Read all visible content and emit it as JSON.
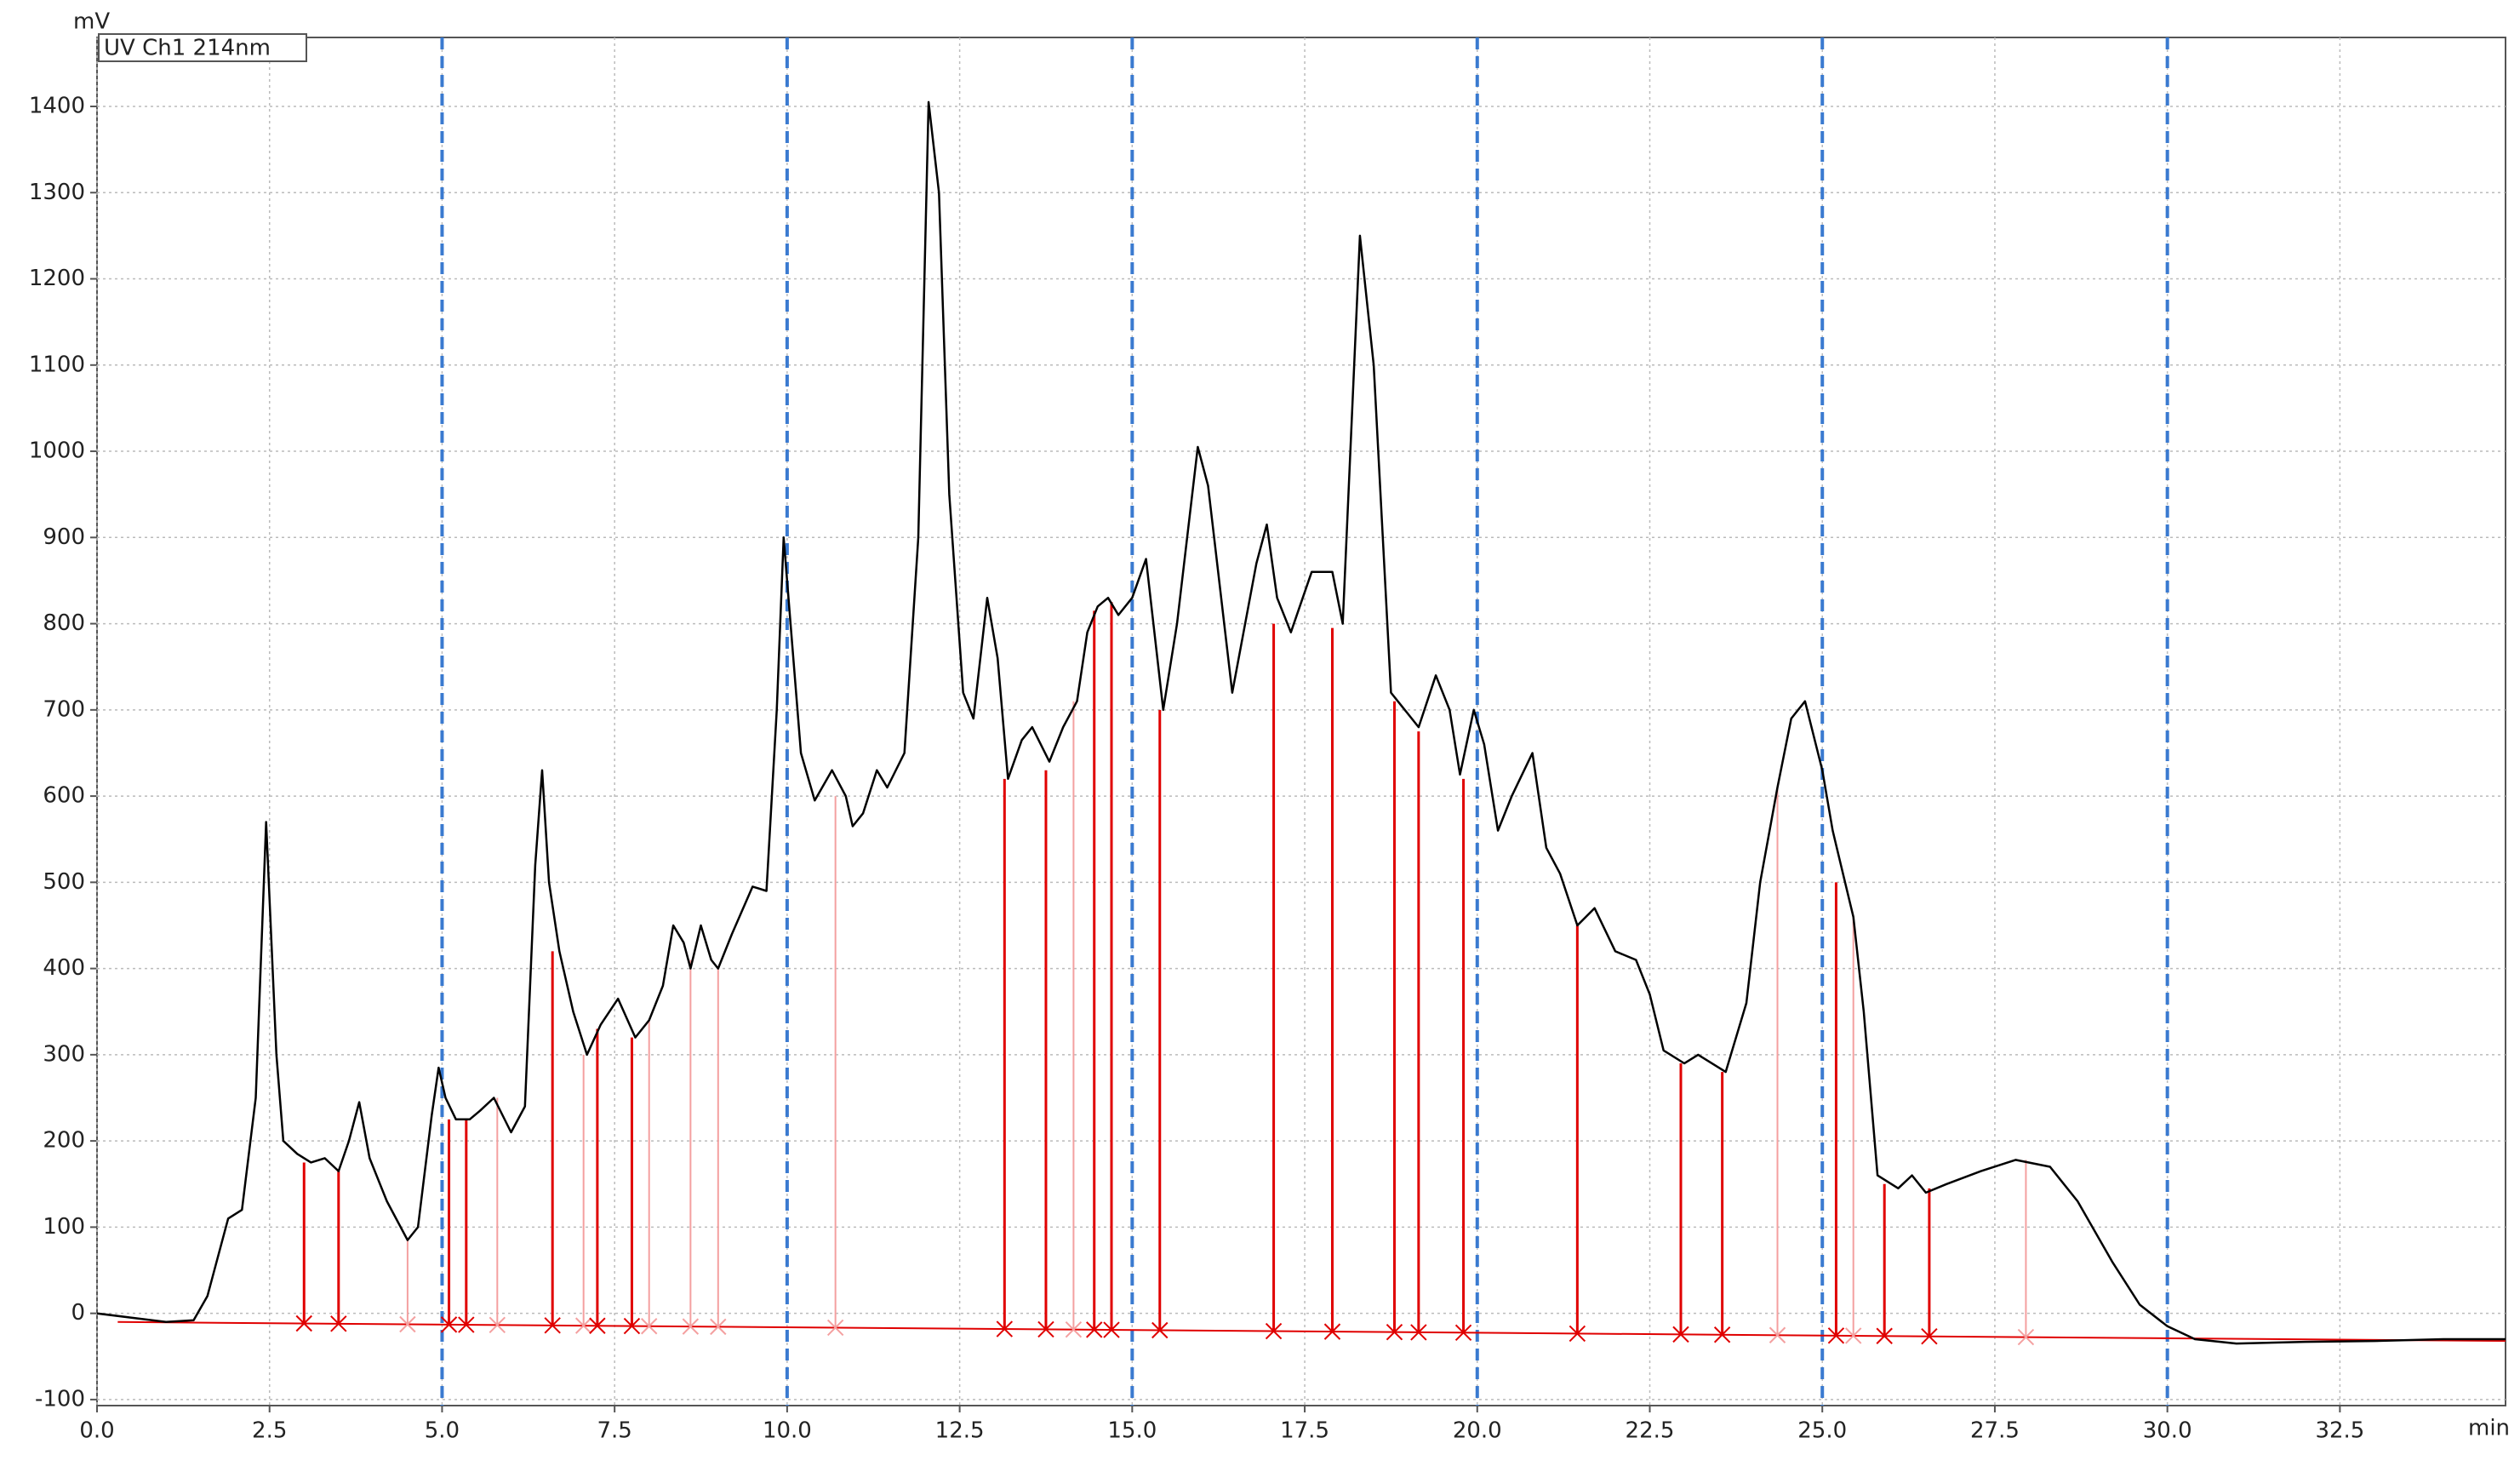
{
  "chart_data": {
    "type": "line",
    "ylabel": "mV",
    "xlabel": "min",
    "x": [
      0,
      0.5,
      1.0,
      1.4,
      1.6,
      1.9,
      2.1,
      2.3,
      2.45,
      2.6,
      2.7,
      2.9,
      3.1,
      3.3,
      3.5,
      3.65,
      3.8,
      3.95,
      4.2,
      4.5,
      4.65,
      4.85,
      4.95,
      5.05,
      5.2,
      5.4,
      5.55,
      5.75,
      6.0,
      6.2,
      6.35,
      6.45,
      6.55,
      6.7,
      6.9,
      7.1,
      7.3,
      7.55,
      7.8,
      8.0,
      8.2,
      8.35,
      8.5,
      8.6,
      8.75,
      8.9,
      9.0,
      9.2,
      9.5,
      9.7,
      9.85,
      9.95,
      10.05,
      10.2,
      10.4,
      10.65,
      10.85,
      10.95,
      11.1,
      11.3,
      11.45,
      11.7,
      11.9,
      12.05,
      12.2,
      12.35,
      12.55,
      12.7,
      12.9,
      13.05,
      13.2,
      13.4,
      13.55,
      13.8,
      14.0,
      14.2,
      14.35,
      14.5,
      14.65,
      14.8,
      15.0,
      15.2,
      15.45,
      15.65,
      15.95,
      16.1,
      16.45,
      16.8,
      16.95,
      17.1,
      17.3,
      17.6,
      17.9,
      18.05,
      18.3,
      18.5,
      18.75,
      18.95,
      19.15,
      19.4,
      19.6,
      19.75,
      19.95,
      20.1,
      20.3,
      20.5,
      20.8,
      21.0,
      21.2,
      21.45,
      21.7,
      22.0,
      22.3,
      22.5,
      22.7,
      23.0,
      23.2,
      23.6,
      23.9,
      24.1,
      24.35,
      24.55,
      24.75,
      25.0,
      25.15,
      25.3,
      25.45,
      25.6,
      25.8,
      26.1,
      26.3,
      26.5,
      26.8,
      27.3,
      27.8,
      28.3,
      28.7,
      29.2,
      29.6,
      30.0,
      30.4,
      31.0,
      32.0,
      33.0,
      34.0,
      34.9
    ],
    "series": [
      {
        "name": "UV Ch1 214nm",
        "color": "#000000",
        "values": [
          0,
          -5,
          -10,
          -8,
          20,
          110,
          120,
          250,
          570,
          300,
          200,
          185,
          175,
          180,
          165,
          200,
          245,
          180,
          130,
          85,
          100,
          230,
          285,
          250,
          225,
          225,
          235,
          250,
          210,
          240,
          520,
          630,
          500,
          420,
          350,
          300,
          335,
          365,
          320,
          340,
          380,
          450,
          430,
          400,
          450,
          410,
          400,
          440,
          495,
          490,
          700,
          900,
          800,
          650,
          595,
          630,
          600,
          565,
          580,
          630,
          610,
          650,
          900,
          1405,
          1300,
          950,
          720,
          690,
          830,
          760,
          620,
          665,
          680,
          640,
          680,
          710,
          790,
          820,
          830,
          810,
          830,
          875,
          700,
          800,
          1005,
          960,
          720,
          870,
          915,
          830,
          790,
          860,
          860,
          800,
          1250,
          1100,
          720,
          700,
          680,
          740,
          700,
          625,
          700,
          660,
          560,
          600,
          650,
          540,
          510,
          450,
          470,
          420,
          410,
          370,
          305,
          290,
          300,
          280,
          360,
          500,
          610,
          690,
          710,
          630,
          560,
          510,
          460,
          350,
          160,
          145,
          160,
          140,
          150,
          165,
          178,
          170,
          130,
          60,
          10,
          -15,
          -30,
          -35,
          -33,
          -32,
          -30,
          -30
        ]
      }
    ],
    "peaks": {
      "color": "#e00000",
      "x": [
        3.0,
        3.5,
        5.1,
        5.35,
        6.6,
        7.25,
        7.75,
        13.15,
        13.75,
        14.45,
        14.7,
        15.4,
        17.05,
        17.9,
        18.8,
        19.15,
        19.8,
        21.45,
        22.95,
        23.55,
        25.2,
        25.9,
        26.55
      ],
      "y": [
        175,
        165,
        225,
        225,
        420,
        330,
        320,
        620,
        630,
        815,
        825,
        700,
        800,
        795,
        710,
        675,
        620,
        450,
        290,
        280,
        500,
        150,
        145
      ]
    },
    "faint_peaks": {
      "color": "#f4a0a0",
      "x": [
        4.5,
        5.8,
        7.05,
        8.0,
        8.6,
        9.0,
        10.7,
        14.15,
        24.35,
        25.45,
        27.95
      ],
      "y": [
        85,
        250,
        300,
        340,
        410,
        400,
        600,
        710,
        610,
        460,
        178
      ]
    },
    "baseline": {
      "color": "#e00000",
      "x": [
        0.3,
        34.9
      ],
      "y": [
        -10,
        -32
      ]
    },
    "fraction_markers": {
      "color": "#3a7ad0",
      "x": [
        5,
        10,
        15,
        20,
        25,
        30
      ]
    },
    "xlim": [
      0,
      34.9
    ],
    "ylim": [
      -107,
      1480
    ],
    "xticks": [
      {
        "value": 0,
        "label": "0.0"
      },
      2.5,
      {
        "value": 5,
        "label": "5.0"
      },
      7.5,
      {
        "value": 10,
        "label": "10.0"
      },
      12.5,
      {
        "value": 15,
        "label": "15.0"
      },
      17.5,
      {
        "value": 20,
        "label": "20.0"
      },
      22.5,
      {
        "value": 25,
        "label": "25.0"
      },
      27.5,
      {
        "value": 30,
        "label": "30.0"
      },
      32.5
    ],
    "yticks": [
      -100,
      0,
      100,
      200,
      300,
      400,
      500,
      600,
      700,
      800,
      900,
      1000,
      1100,
      1200,
      1300,
      1400
    ],
    "grid": true
  }
}
